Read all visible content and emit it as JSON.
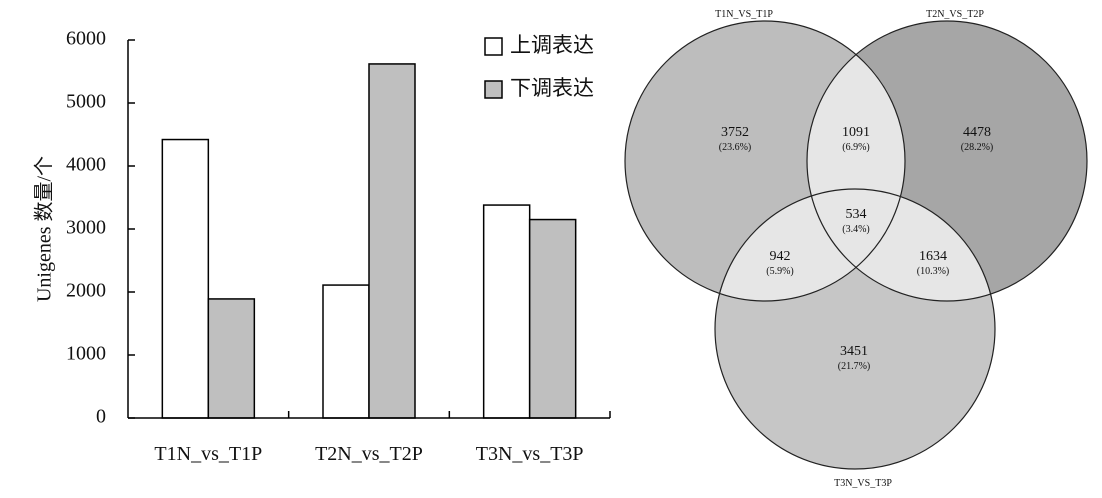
{
  "chart_data": [
    {
      "type": "bar",
      "categories": [
        "T1N_vs_T1P",
        "T2N_vs_T2P",
        "T3N_vs_T3P"
      ],
      "series": [
        {
          "name": "上调表达",
          "values": [
            4420,
            2110,
            3380
          ],
          "color": "#ffffff"
        },
        {
          "name": "下调表达",
          "values": [
            1890,
            5620,
            3150
          ],
          "color": "#bfbfbf"
        }
      ],
      "ylabel": "Unigenes 数量/个",
      "ylim": [
        0,
        6000
      ],
      "yticks": [
        0,
        1000,
        2000,
        3000,
        4000,
        5000,
        6000
      ],
      "legend_position": "top-right",
      "grid": false
    },
    {
      "type": "venn",
      "sets": [
        {
          "name": "T1N_VS_T1P",
          "color": "#bdbdbd"
        },
        {
          "name": "T2N_VS_T2P",
          "color": "#a6a6a6"
        },
        {
          "name": "T3N_VS_T3P",
          "color": "#c6c6c6"
        }
      ],
      "regions": [
        {
          "sets": [
            "T1N_VS_T1P"
          ],
          "value": "3752",
          "percent": "(23.6%)"
        },
        {
          "sets": [
            "T1N_VS_T1P",
            "T2N_VS_T2P"
          ],
          "value": "1091",
          "percent": "(6.9%)"
        },
        {
          "sets": [
            "T2N_VS_T2P"
          ],
          "value": "4478",
          "percent": "(28.2%)"
        },
        {
          "sets": [
            "T1N_VS_T1P",
            "T2N_VS_T2P",
            "T3N_VS_T3P"
          ],
          "value": "534",
          "percent": "(3.4%)"
        },
        {
          "sets": [
            "T1N_VS_T1P",
            "T3N_VS_T3P"
          ],
          "value": "942",
          "percent": "(5.9%)"
        },
        {
          "sets": [
            "T2N_VS_T2P",
            "T3N_VS_T3P"
          ],
          "value": "1634",
          "percent": "(10.3%)"
        },
        {
          "sets": [
            "T3N_VS_T3P"
          ],
          "value": "3451",
          "percent": "(21.7%)"
        }
      ],
      "overlap_color": "#e6e6e6"
    }
  ]
}
